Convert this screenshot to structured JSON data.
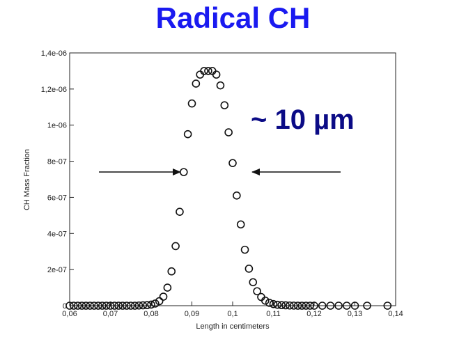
{
  "page": {
    "title": "Radical CH",
    "annotation": "~ 10 µm",
    "title_color": "#1a1af0",
    "annotation_color": "#0b0b86"
  },
  "chart_data": {
    "type": "scatter",
    "title": "Radical CH",
    "xlabel": "Length in centimeters",
    "ylabel": "CH Mass Fraction",
    "xlim": [
      0.06,
      0.14
    ],
    "ylim": [
      0,
      1.4e-06
    ],
    "grid": false,
    "marker": "open-circle",
    "x_ticks": [
      {
        "value": 0.06,
        "label": "0,06"
      },
      {
        "value": 0.07,
        "label": "0,07"
      },
      {
        "value": 0.08,
        "label": "0,08"
      },
      {
        "value": 0.09,
        "label": "0,09"
      },
      {
        "value": 0.1,
        "label": "0,1"
      },
      {
        "value": 0.11,
        "label": "0,11"
      },
      {
        "value": 0.12,
        "label": "0,12"
      },
      {
        "value": 0.13,
        "label": "0,13"
      },
      {
        "value": 0.14,
        "label": "0,14"
      }
    ],
    "y_ticks": [
      {
        "value": 0,
        "label": "0"
      },
      {
        "value": 2e-07,
        "label": "2e-07"
      },
      {
        "value": 4e-07,
        "label": "4e-07"
      },
      {
        "value": 6e-07,
        "label": "6e-07"
      },
      {
        "value": 8e-07,
        "label": "8e-07"
      },
      {
        "value": 1e-06,
        "label": "1e-06"
      },
      {
        "value": 1.2e-06,
        "label": "1,2e-06"
      },
      {
        "value": 1.4e-06,
        "label": "1,4e-06"
      }
    ],
    "series": [
      {
        "x": [
          0.06,
          0.061,
          0.062,
          0.063,
          0.064,
          0.065,
          0.066,
          0.067,
          0.068,
          0.069,
          0.07,
          0.071,
          0.072,
          0.073,
          0.074,
          0.075,
          0.076,
          0.077,
          0.078,
          0.079,
          0.08,
          0.081,
          0.082,
          0.083,
          0.084,
          0.085,
          0.086,
          0.087,
          0.088,
          0.089,
          0.09,
          0.091,
          0.092,
          0.093,
          0.094,
          0.095,
          0.096,
          0.097,
          0.098,
          0.099,
          0.1,
          0.101,
          0.102,
          0.103,
          0.104,
          0.105,
          0.106,
          0.107,
          0.108,
          0.109,
          0.11,
          0.111,
          0.112,
          0.113,
          0.114,
          0.115,
          0.116,
          0.117,
          0.118,
          0.119,
          0.12,
          0.122,
          0.124,
          0.126,
          0.128,
          0.13,
          0.133,
          0.138
        ],
        "y": [
          0,
          0,
          0,
          0,
          0,
          0,
          0,
          0,
          0,
          0,
          0,
          0,
          0,
          0,
          0,
          0,
          0,
          1e-09,
          2e-09,
          3e-09,
          6e-09,
          1.2e-08,
          2.5e-08,
          5e-08,
          1e-07,
          1.9e-07,
          3.3e-07,
          5.2e-07,
          7.4e-07,
          9.5e-07,
          1.12e-06,
          1.23e-06,
          1.28e-06,
          1.3e-06,
          1.3e-06,
          1.3e-06,
          1.28e-06,
          1.22e-06,
          1.11e-06,
          9.6e-07,
          7.9e-07,
          6.1e-07,
          4.5e-07,
          3.1e-07,
          2.05e-07,
          1.3e-07,
          8e-08,
          4.8e-08,
          2.8e-08,
          1.6e-08,
          9e-09,
          5e-09,
          3e-09,
          2e-09,
          1e-09,
          5e-10,
          0,
          0,
          0,
          0,
          0,
          0,
          0,
          0,
          0,
          0,
          0,
          0
        ]
      }
    ]
  }
}
